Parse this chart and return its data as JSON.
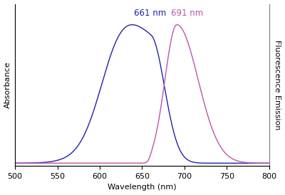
{
  "x_min": 500,
  "x_max": 800,
  "xlabel": "Wavelength (nm)",
  "ylabel_left": "Absorbance",
  "ylabel_right": "Fluorescence Emission",
  "abs_peak": 661,
  "abs_peak_label": "661 nm",
  "abs_color": "#2222aa",
  "em_peak": 691,
  "em_peak_label": "691 nm",
  "em_color": "#bb55aa",
  "xticks": [
    500,
    550,
    600,
    650,
    700,
    750,
    800
  ],
  "background_color": "#ffffff",
  "fig_width": 4.0,
  "fig_height": 2.74,
  "dpi": 100
}
